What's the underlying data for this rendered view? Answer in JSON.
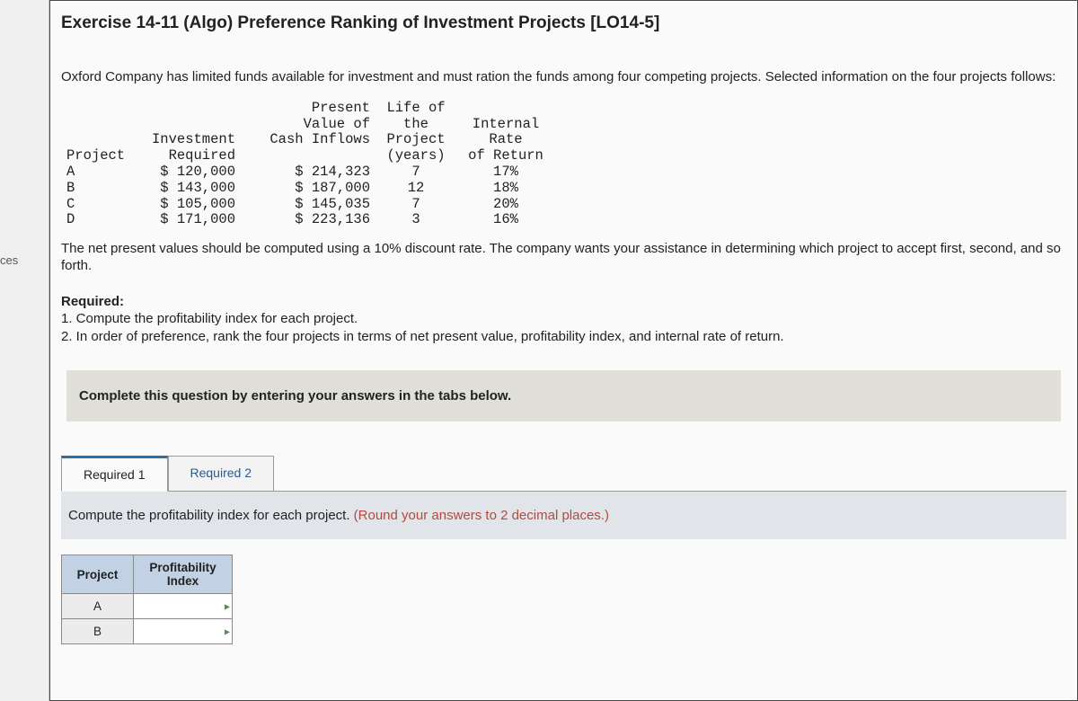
{
  "leftRail": {
    "fragmentTop": "",
    "fragmentMid": "ces"
  },
  "title": "Exercise 14-11 (Algo) Preference Ranking of Investment Projects [LO14-5]",
  "intro": "Oxford Company has limited funds available for investment and must ration the funds among four competing projects. Selected information on the four projects follows:",
  "dataTable": {
    "headers": {
      "project": "Project",
      "investment": "Investment\nRequired",
      "pv": "Present\nValue of\nCash Inflows",
      "life": "Life of\nthe\nProject\n(years)",
      "irr": "Internal\nRate\nof Return"
    },
    "rows": [
      {
        "project": "A",
        "investment": "$ 120,000",
        "pv": "$ 214,323",
        "life": "7",
        "irr": "17%"
      },
      {
        "project": "B",
        "investment": "$ 143,000",
        "pv": "$ 187,000",
        "life": "12",
        "irr": "18%"
      },
      {
        "project": "C",
        "investment": "$ 105,000",
        "pv": "$ 145,035",
        "life": "7",
        "irr": "20%"
      },
      {
        "project": "D",
        "investment": "$ 171,000",
        "pv": "$ 223,136",
        "life": "3",
        "irr": "16%"
      }
    ]
  },
  "pvNote": "The net present values should be computed using a 10% discount rate. The company wants your assistance in determining which project to accept first, second, and so forth.",
  "required": {
    "heading": "Required:",
    "items": [
      "1. Compute the profitability index for each project.",
      "2. In order of preference, rank the four projects in terms of net present value, profitability index, and internal rate of return."
    ]
  },
  "completeBar": "Complete this question by entering your answers in the tabs below.",
  "tabs": {
    "t1": "Required 1",
    "t2": "Required 2",
    "active": 0
  },
  "instruction": {
    "main": "Compute the profitability index for each project. ",
    "note": "(Round your answers to 2 decimal places.)"
  },
  "answerTable": {
    "col1": "Project",
    "col2": "Profitability\nIndex",
    "rows": [
      "A",
      "B"
    ]
  },
  "colors": {
    "pageBg": "#e8e8e8",
    "panelBg": "#fafafa",
    "panelBorder": "#4a4a4a",
    "tabActiveBorder": "#286ea8",
    "tabLink": "#2c5a8a",
    "headerCellBg": "#c2d1e3",
    "rowHdrBg": "#ececec",
    "noteColor": "#b34b3d",
    "completeBarBg": "#e0e0d8",
    "instrBarBg": "#e1e4e8"
  }
}
